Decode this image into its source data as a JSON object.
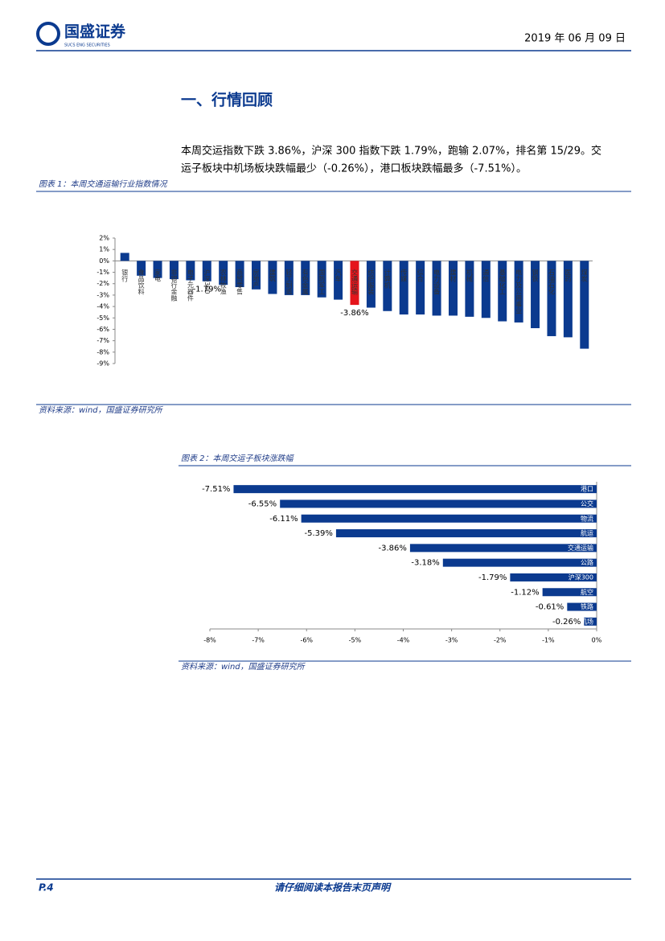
{
  "header": {
    "logo": "国盛证券",
    "logo_sub": "SUCS ENG SECURITIES",
    "date": "2019 年 06 月 09 日"
  },
  "section_title": "一、行情回顾",
  "paragraph": [
    "本周交运指数下跌 3.86%，沪深 300 指数下跌 1.79%，跑输 2.07%，排名第 15/29。交",
    "运子板块中机场板块跌幅最少（-0.26%），港口板块跌幅最多（-7.51%）。"
  ],
  "figure1": {
    "caption": "图表 1：本周交通运输行业指数情况",
    "source": "资料来源：wind，国盛证券研究所"
  },
  "figure2": {
    "caption": "图表 2：本周交运子板块涨跌幅",
    "source": "资料来源：wind，国盛证券研究所"
  },
  "footer": {
    "page": "P.4",
    "note": "请仔细阅读本报告末页声明"
  },
  "chart_data": [
    {
      "type": "bar",
      "categories": [
        "银行",
        "食品饮料",
        "家电",
        "非银行金融",
        "电子元器件",
        "沪深300",
        "农林牧渔",
        "商贸零售",
        "房地产",
        "建筑",
        "轻工制造",
        "有色金属",
        "国防军工",
        "汽车",
        "交通运输",
        "纺织服装",
        "计算机",
        "传媒",
        "综合",
        "电力设备",
        "建材",
        "机械",
        "通信",
        "基础化工",
        "电力及公用事业",
        "钢铁",
        "石油石化",
        "医药",
        "煤炭"
      ],
      "values": [
        0.7,
        -1.3,
        -1.5,
        -1.6,
        -1.7,
        -1.79,
        -2.1,
        -2.3,
        -2.5,
        -2.9,
        -3.0,
        -3.0,
        -3.2,
        -3.4,
        -3.86,
        -4.1,
        -4.4,
        -4.7,
        -4.7,
        -4.8,
        -4.8,
        -4.9,
        -5.0,
        -5.3,
        -5.4,
        -5.9,
        -6.6,
        -6.7,
        -7.7
      ],
      "value_labels": [
        null,
        null,
        null,
        null,
        null,
        "-1.79%",
        null,
        null,
        null,
        null,
        null,
        null,
        null,
        null,
        "-3.86%",
        null,
        null,
        null,
        null,
        null,
        null,
        null,
        null,
        null,
        null,
        null,
        null,
        null,
        null
      ],
      "colors": [
        "#0b3a8f",
        "#0b3a8f",
        "#0b3a8f",
        "#0b3a8f",
        "#0b3a8f",
        "#0b3a8f",
        "#0b3a8f",
        "#0b3a8f",
        "#0b3a8f",
        "#0b3a8f",
        "#0b3a8f",
        "#0b3a8f",
        "#0b3a8f",
        "#0b3a8f",
        "#e5141b",
        "#0b3a8f",
        "#0b3a8f",
        "#0b3a8f",
        "#0b3a8f",
        "#0b3a8f",
        "#0b3a8f",
        "#0b3a8f",
        "#0b3a8f",
        "#0b3a8f",
        "#0b3a8f",
        "#0b3a8f",
        "#0b3a8f",
        "#0b3a8f",
        "#0b3a8f"
      ],
      "ylim": [
        -9,
        2
      ],
      "yticks": [
        {
          "value": 2,
          "label": "2%"
        },
        {
          "value": 1,
          "label": "1%"
        },
        {
          "value": 0,
          "label": "0%"
        },
        {
          "value": -1,
          "label": "-1%"
        },
        {
          "value": -2,
          "label": "-2%"
        },
        {
          "value": -3,
          "label": "-3%"
        },
        {
          "value": -4,
          "label": "-4%"
        },
        {
          "value": -5,
          "label": "-5%"
        },
        {
          "value": -6,
          "label": "-6%"
        },
        {
          "value": -7,
          "label": "-7%"
        },
        {
          "value": -8,
          "label": "-8%"
        },
        {
          "value": -9,
          "label": "-9%"
        }
      ]
    },
    {
      "type": "hbar",
      "categories": [
        "港口",
        "公交",
        "物流",
        "航运",
        "交通运输",
        "公路",
        "沪深300",
        "航空",
        "铁路",
        "机场"
      ],
      "values": [
        -7.51,
        -6.55,
        -6.11,
        -5.39,
        -3.86,
        -3.18,
        -1.79,
        -1.12,
        -0.61,
        -0.26
      ],
      "value_labels": [
        "-7.51%",
        "-6.55%",
        "-6.11%",
        "-5.39%",
        "-3.86%",
        "-3.18%",
        "-1.79%",
        "-1.12%",
        "-0.61%",
        "-0.26%"
      ],
      "color": "#0b3a8f",
      "xlim": [
        -8,
        0
      ],
      "xticks": [
        {
          "value": -8,
          "label": "-8%"
        },
        {
          "value": -7,
          "label": "-7%"
        },
        {
          "value": -6,
          "label": "-6%"
        },
        {
          "value": -5,
          "label": "-5%"
        },
        {
          "value": -4,
          "label": "-4%"
        },
        {
          "value": -3,
          "label": "-3%"
        },
        {
          "value": -2,
          "label": "-2%"
        },
        {
          "value": -1,
          "label": "-1%"
        },
        {
          "value": 0,
          "label": "0%"
        }
      ]
    }
  ]
}
